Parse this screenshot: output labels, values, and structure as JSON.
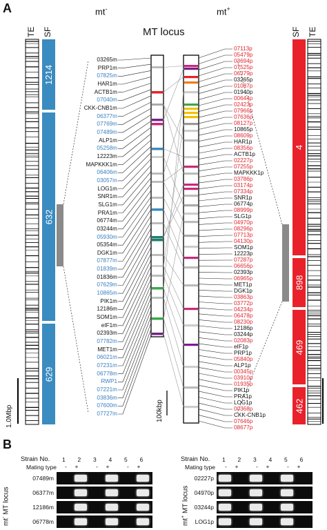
{
  "panel_a": {
    "letter": "A",
    "mt_minus": "mt",
    "mt_minus_sup": "-",
    "mt_plus": "mt",
    "mt_plus_sup": "+",
    "title": "MT locus",
    "te_label": "TE",
    "sf_label": "SF",
    "scale_left": "1.0Mbp",
    "scale_mid": "100kbp",
    "sf_left": [
      "1214",
      "632",
      "629"
    ],
    "sf_right": [
      "4",
      "898",
      "469",
      "462"
    ],
    "colors": {
      "blue": "#3a8bbf",
      "red": "#e8212a",
      "gray": "#8a8a8a",
      "blue_text": "#3a7fc0",
      "red_text": "#e0272f"
    },
    "left_genes": [
      {
        "name": "03265m",
        "c": "k"
      },
      {
        "name": "PRP1m",
        "c": "k"
      },
      {
        "name": "07825m",
        "c": "b"
      },
      {
        "name": "HAR1m",
        "c": "k"
      },
      {
        "name": "ACTB1m",
        "c": "k"
      },
      {
        "name": "07040m",
        "c": "b"
      },
      {
        "name": "CKK-CNB1m",
        "c": "k"
      },
      {
        "name": "06377m",
        "c": "b"
      },
      {
        "name": "07769m",
        "c": "b"
      },
      {
        "name": "07489m",
        "c": "b"
      },
      {
        "name": "ALP1m",
        "c": "k"
      },
      {
        "name": "05258m",
        "c": "b"
      },
      {
        "name": "12223m",
        "c": "k"
      },
      {
        "name": "MAPKKK1m",
        "c": "k"
      },
      {
        "name": "06406m",
        "c": "b"
      },
      {
        "name": "03057m",
        "c": "b"
      },
      {
        "name": "LOG1m",
        "c": "k"
      },
      {
        "name": "SNR1m",
        "c": "k"
      },
      {
        "name": "SLG1m",
        "c": "k"
      },
      {
        "name": "PRA1m",
        "c": "k"
      },
      {
        "name": "06774m",
        "c": "k"
      },
      {
        "name": "03244m",
        "c": "k"
      },
      {
        "name": "05930m",
        "c": "b"
      },
      {
        "name": "05354m",
        "c": "k"
      },
      {
        "name": "DGK1m",
        "c": "k"
      },
      {
        "name": "07877m",
        "c": "b"
      },
      {
        "name": "01839m",
        "c": "b"
      },
      {
        "name": "01836m",
        "c": "k"
      },
      {
        "name": "07629m",
        "c": "b"
      },
      {
        "name": "10865m",
        "c": "b"
      },
      {
        "name": "PIK1m",
        "c": "k"
      },
      {
        "name": "12186m",
        "c": "k"
      },
      {
        "name": "SOM1m",
        "c": "k"
      },
      {
        "name": "eIF1m",
        "c": "k"
      },
      {
        "name": "02393m",
        "c": "k"
      },
      {
        "name": "07782m",
        "c": "b"
      },
      {
        "name": "MET1m",
        "c": "k"
      },
      {
        "name": "06021m",
        "c": "b"
      },
      {
        "name": "07231m",
        "c": "b"
      },
      {
        "name": "06778m",
        "c": "b"
      },
      {
        "name": "RWP1",
        "c": "b"
      },
      {
        "name": "07221m",
        "c": "b"
      },
      {
        "name": "03836m",
        "c": "b"
      },
      {
        "name": "07600m",
        "c": "b"
      },
      {
        "name": "07727m",
        "c": "b"
      }
    ],
    "right_genes": [
      {
        "name": "07113p",
        "c": "r"
      },
      {
        "name": "05479p",
        "c": "r"
      },
      {
        "name": "03694p",
        "c": "r"
      },
      {
        "name": "07525p",
        "c": "r"
      },
      {
        "name": "06379p",
        "c": "r"
      },
      {
        "name": "03265p",
        "c": "k"
      },
      {
        "name": "01087p",
        "c": "r"
      },
      {
        "name": "01940p",
        "c": "k"
      },
      {
        "name": "00644p",
        "c": "r"
      },
      {
        "name": "02423p",
        "c": "r"
      },
      {
        "name": "07966p",
        "c": "r"
      },
      {
        "name": "07636p",
        "c": "r"
      },
      {
        "name": "08127p",
        "c": "r"
      },
      {
        "name": "10865p",
        "c": "k"
      },
      {
        "name": "08609p",
        "c": "r"
      },
      {
        "name": "HAR1p",
        "c": "k"
      },
      {
        "name": "08356p",
        "c": "r"
      },
      {
        "name": "ACTB1p",
        "c": "k"
      },
      {
        "name": "02227p",
        "c": "r"
      },
      {
        "name": "07255p",
        "c": "r"
      },
      {
        "name": "MAPKKK1p",
        "c": "k"
      },
      {
        "name": "03786p",
        "c": "r"
      },
      {
        "name": "03174p",
        "c": "r"
      },
      {
        "name": "07334p",
        "c": "r"
      },
      {
        "name": "SNR1p",
        "c": "k"
      },
      {
        "name": "06774p",
        "c": "k"
      },
      {
        "name": "08999p",
        "c": "r"
      },
      {
        "name": "SLG1p",
        "c": "k"
      },
      {
        "name": "04970p",
        "c": "r"
      },
      {
        "name": "08296p",
        "c": "r"
      },
      {
        "name": "07713p",
        "c": "r"
      },
      {
        "name": "04130p",
        "c": "r"
      },
      {
        "name": "SOM1p",
        "c": "k"
      },
      {
        "name": "12223p",
        "c": "k"
      },
      {
        "name": "07287p",
        "c": "r"
      },
      {
        "name": "06656p",
        "c": "r"
      },
      {
        "name": "02393p",
        "c": "k"
      },
      {
        "name": "06965p",
        "c": "r"
      },
      {
        "name": "MET1p",
        "c": "k"
      },
      {
        "name": "DGK1p",
        "c": "k"
      },
      {
        "name": "03863p",
        "c": "r"
      },
      {
        "name": "03772p",
        "c": "r"
      },
      {
        "name": "04234p",
        "c": "r"
      },
      {
        "name": "06478p",
        "c": "r"
      },
      {
        "name": "08230p",
        "c": "r"
      },
      {
        "name": "12186p",
        "c": "k"
      },
      {
        "name": "03244p",
        "c": "k"
      },
      {
        "name": "02083p",
        "c": "r"
      },
      {
        "name": "eIF1p",
        "c": "k"
      },
      {
        "name": "PRP1p",
        "c": "k"
      },
      {
        "name": "05840p",
        "c": "r"
      },
      {
        "name": "ALP1p",
        "c": "k"
      },
      {
        "name": "00345p",
        "c": "r"
      },
      {
        "name": "03910p",
        "c": "r"
      },
      {
        "name": "01935p",
        "c": "r"
      },
      {
        "name": "PIK1p",
        "c": "k"
      },
      {
        "name": "PRA1p",
        "c": "k"
      },
      {
        "name": "LOG1p",
        "c": "k"
      },
      {
        "name": "00368p",
        "c": "r"
      },
      {
        "name": "CKK-CNB1p",
        "c": "k"
      },
      {
        "name": "07646p",
        "c": "r"
      },
      {
        "name": "08677p",
        "c": "r"
      }
    ]
  },
  "panel_b": {
    "letter": "B",
    "strain_label": "Strain No.",
    "mating_label": "Mating type",
    "strains": [
      "1",
      "2",
      "3",
      "4",
      "5",
      "6"
    ],
    "mating": [
      "-",
      "+",
      "-",
      "+",
      "-",
      "+"
    ],
    "left": {
      "side_label": "mt",
      "side_sup": "-",
      "side_suffix": " MT locus",
      "rows": [
        {
          "name": "07489m",
          "bands": [
            false,
            true,
            false,
            true,
            false,
            true
          ]
        },
        {
          "name": "06377m",
          "bands": [
            false,
            true,
            false,
            true,
            false,
            true
          ]
        },
        {
          "name": "12186m",
          "bands": [
            false,
            true,
            false,
            true,
            false,
            true
          ]
        },
        {
          "name": "06778m",
          "bands": [
            false,
            true,
            false,
            true,
            false,
            true
          ]
        }
      ]
    },
    "right": {
      "side_label": "mt",
      "side_sup": "+",
      "side_suffix": " MT locus",
      "rows": [
        {
          "name": "02227p",
          "bands": [
            true,
            false,
            true,
            false,
            true,
            false
          ]
        },
        {
          "name": "04970p",
          "bands": [
            true,
            false,
            true,
            false,
            true,
            false
          ]
        },
        {
          "name": "03244p",
          "bands": [
            true,
            false,
            true,
            false,
            true,
            false
          ]
        },
        {
          "name": "LOG1p",
          "bands": [
            true,
            false,
            true,
            false,
            true,
            false
          ]
        }
      ]
    }
  }
}
